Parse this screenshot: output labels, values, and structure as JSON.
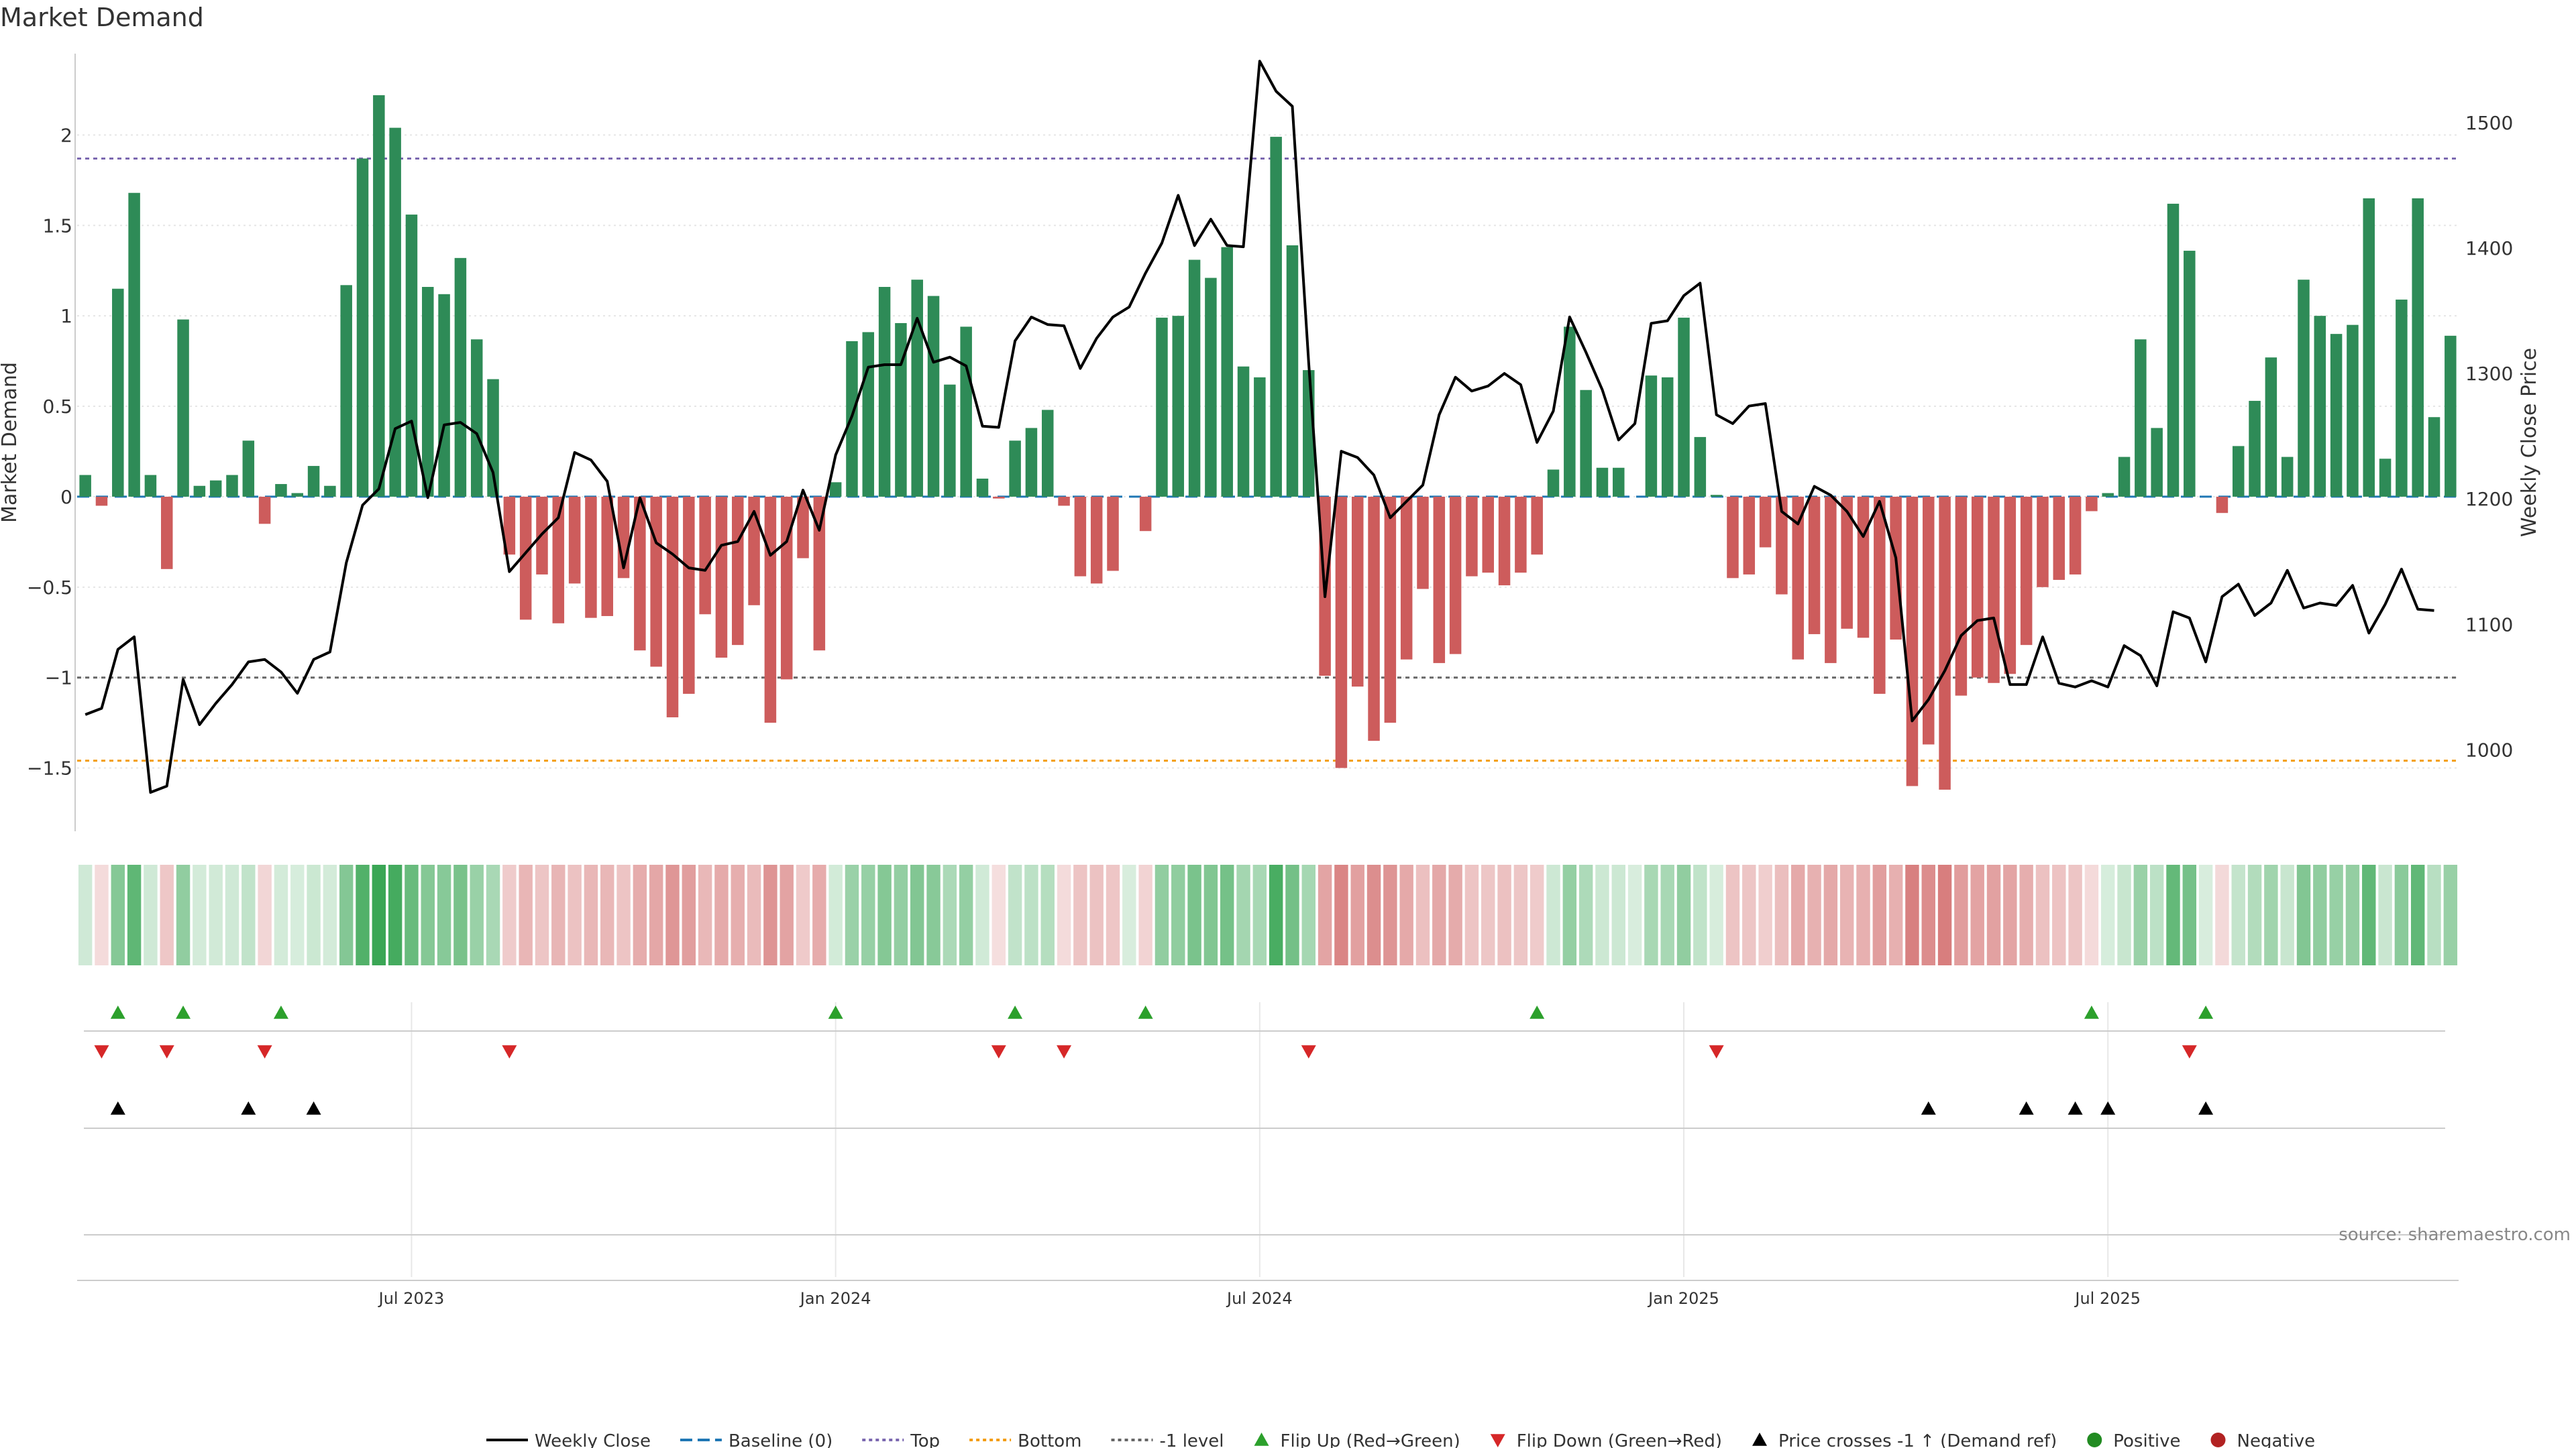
{
  "title": "Market Demand",
  "source": "source: sharemaestro.com",
  "colors": {
    "positive": "#2e8b57",
    "negative": "#cd5c5c",
    "price": "#000000",
    "top": "#7b68b0",
    "bottom": "#f39c12",
    "minus1": "#666666",
    "baseline": "#1f77b4",
    "flip_up": "#2ca02c",
    "flip_down": "#d62728",
    "cross": "#000000"
  },
  "chart_data": {
    "type": "bar",
    "title": "Market Demand",
    "ylabel": "Market Demand",
    "y2label": "Weekly Close Price",
    "ylim": [
      -1.85,
      2.45
    ],
    "y2lim": [
      935,
      1555
    ],
    "yticks": [
      {
        "v": 2,
        "label": "2"
      },
      {
        "v": 1.5,
        "label": "1.5"
      },
      {
        "v": 1,
        "label": "1"
      },
      {
        "v": 0.5,
        "label": "0.5"
      },
      {
        "v": 0,
        "label": "0"
      },
      {
        "v": -0.5,
        "label": "−0.5"
      },
      {
        "v": -1,
        "label": "−1"
      },
      {
        "v": -1.5,
        "label": "−1.5"
      }
    ],
    "y2ticks": [
      {
        "v": 1500,
        "label": "1500"
      },
      {
        "v": 1400,
        "label": "1400"
      },
      {
        "v": 1300,
        "label": "1300"
      },
      {
        "v": 1200,
        "label": "1200"
      },
      {
        "v": 1100,
        "label": "1100"
      },
      {
        "v": 1000,
        "label": "1000"
      }
    ],
    "xticks": [
      {
        "week": 20,
        "label": "Jul 2023"
      },
      {
        "week": 46,
        "label": "Jan 2024"
      },
      {
        "week": 72,
        "label": "Jul 2024"
      },
      {
        "week": 98,
        "label": "Jan 2025"
      },
      {
        "week": 124,
        "label": "Jul 2025"
      }
    ],
    "reference_lines": {
      "top": 1.87,
      "bottom": -1.46,
      "minus1": -1,
      "baseline": 0
    },
    "demand": [
      0.12,
      -0.05,
      1.15,
      1.68,
      0.12,
      -0.4,
      0.98,
      0.06,
      0.09,
      0.12,
      0.31,
      -0.15,
      0.07,
      0.02,
      0.17,
      0.06,
      1.17,
      1.87,
      2.22,
      2.04,
      1.56,
      1.16,
      1.12,
      1.32,
      0.87,
      0.65,
      -0.32,
      -0.68,
      -0.43,
      -0.7,
      -0.48,
      -0.67,
      -0.66,
      -0.45,
      -0.85,
      -0.94,
      -1.22,
      -1.09,
      -0.65,
      -0.89,
      -0.82,
      -0.6,
      -1.25,
      -1.01,
      -0.34,
      -0.85,
      0.08,
      0.86,
      0.91,
      1.16,
      0.96,
      1.2,
      1.11,
      0.62,
      0.94,
      0.1,
      -0.01,
      0.31,
      0.38,
      0.48,
      -0.05,
      -0.44,
      -0.48,
      -0.41,
      0,
      -0.19,
      0.99,
      1.0,
      1.31,
      1.21,
      1.38,
      0.72,
      0.66,
      1.99,
      1.39,
      0.7,
      -0.99,
      -1.5,
      -1.05,
      -1.35,
      -1.25,
      -0.9,
      -0.51,
      -0.92,
      -0.87,
      -0.44,
      -0.42,
      -0.49,
      -0.42,
      -0.32,
      0.15,
      0.94,
      0.59,
      0.16,
      0.16,
      0,
      0.67,
      0.66,
      0.99,
      0.33,
      0.01,
      -0.45,
      -0.43,
      -0.28,
      -0.54,
      -0.9,
      -0.76,
      -0.92,
      -0.73,
      -0.78,
      -1.09,
      -0.79,
      -1.6,
      -1.37,
      -1.62,
      -1.1,
      -1.0,
      -1.03,
      -0.98,
      -0.82,
      -0.5,
      -0.46,
      -0.43,
      -0.08,
      0.02,
      0.22,
      0.87,
      0.38,
      1.62,
      1.36,
      0,
      -0.09,
      0.28,
      0.53,
      0.77,
      0.22,
      1.2,
      1.0,
      0.9,
      0.95,
      1.65,
      0.21,
      1.09,
      1.65,
      0.44,
      0.89
    ],
    "weekly_close": [
      1028,
      1033,
      1080,
      1090,
      966,
      971,
      1056,
      1020,
      1037,
      1052,
      1070,
      1072,
      1062,
      1045,
      1072,
      1078,
      1149,
      1195,
      1208,
      1256,
      1262,
      1201,
      1259,
      1261,
      1252,
      1221,
      1142,
      1157,
      1172,
      1185,
      1237,
      1231,
      1214,
      1145,
      1201,
      1165,
      1156,
      1145,
      1143,
      1163,
      1166,
      1190,
      1155,
      1166,
      1207,
      1175,
      1235,
      1266,
      1305,
      1307,
      1307,
      1344,
      1309,
      1313,
      1306,
      1258,
      1257,
      1326,
      1345,
      1339,
      1338,
      1304,
      1328,
      1345,
      1353,
      1380,
      1404,
      1442,
      1402,
      1423,
      1402,
      1401,
      1549,
      1525,
      1513,
      1309,
      1122,
      1238,
      1233,
      1219,
      1185,
      1198,
      1211,
      1267,
      1297,
      1286,
      1290,
      1300,
      1291,
      1245,
      1270,
      1345,
      1317,
      1287,
      1247,
      1260,
      1340,
      1342,
      1362,
      1372,
      1267,
      1260,
      1274,
      1276,
      1190,
      1180,
      1210,
      1203,
      1190,
      1170,
      1198,
      1153,
      1023,
      1040,
      1063,
      1091,
      1103,
      1105,
      1052,
      1052,
      1090,
      1053,
      1050,
      1055,
      1050,
      1083,
      1075,
      1051,
      1110,
      1105,
      1070,
      1122,
      1132,
      1107,
      1117,
      1143,
      1113,
      1117,
      1115,
      1131,
      1093,
      1116,
      1144,
      1112,
      1111
    ]
  },
  "markers": {
    "flip_up": [
      2,
      6,
      12,
      46,
      57,
      65,
      89,
      123,
      130
    ],
    "flip_down": [
      1,
      5,
      11,
      26,
      56,
      60,
      75,
      100,
      129
    ],
    "cross": [
      2,
      10,
      14,
      113,
      119,
      122,
      124,
      130
    ]
  },
  "legend": [
    {
      "key": "price",
      "label": "Weekly Close"
    },
    {
      "key": "baseline",
      "label": "Baseline (0)"
    },
    {
      "key": "top",
      "label": "Top"
    },
    {
      "key": "bottom",
      "label": "Bottom"
    },
    {
      "key": "minus1",
      "label": "-1 level"
    },
    {
      "key": "flip_up",
      "label": "Flip Up (Red→Green)"
    },
    {
      "key": "flip_down",
      "label": "Flip Down (Green→Red)"
    },
    {
      "key": "cross",
      "label": "Price crosses -1 ↑ (Demand ref)"
    },
    {
      "key": "positive",
      "label": "Positive"
    },
    {
      "key": "negative",
      "label": "Negative"
    }
  ]
}
